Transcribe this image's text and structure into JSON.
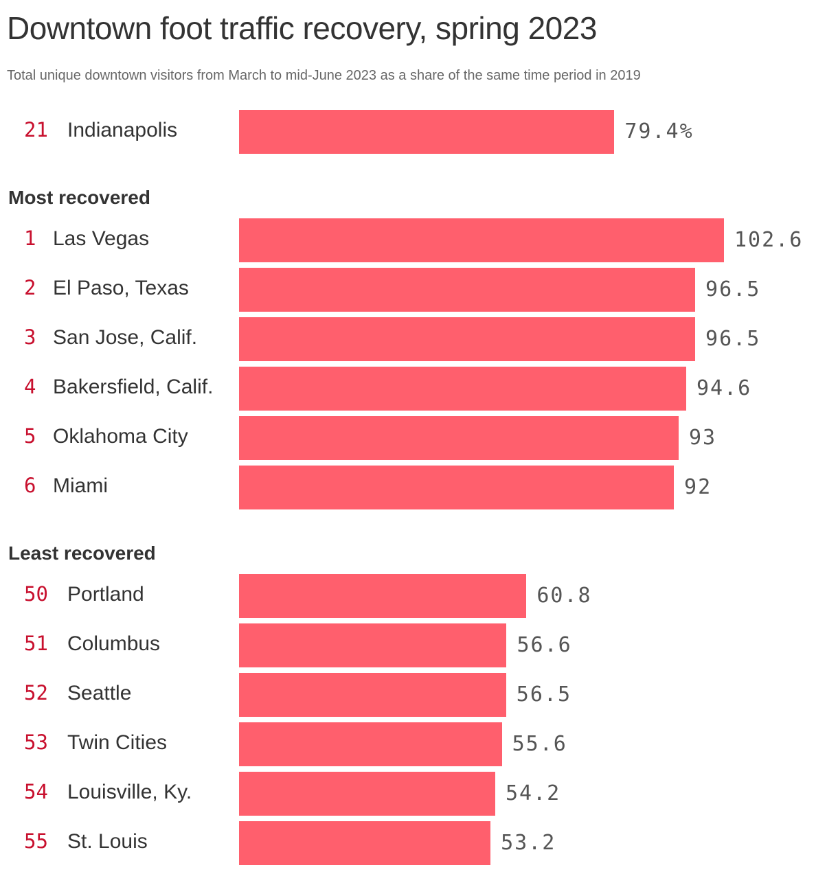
{
  "chart_data": {
    "type": "bar",
    "orientation": "horizontal",
    "title": "Downtown foot traffic recovery, spring 2023",
    "subtitle": "Total unique downtown visitors from March to mid-June 2023 as a share of the same time period in 2019",
    "xlim": [
      0,
      102.6
    ],
    "grid": false,
    "groups": [
      {
        "heading": "",
        "rows": [
          {
            "rank": "21",
            "city": "Indianapolis",
            "value": 79.4,
            "value_label": "79.4%"
          }
        ]
      },
      {
        "heading": "Most recovered",
        "rows": [
          {
            "rank": "1",
            "city": "Las Vegas",
            "value": 102.6,
            "value_label": "102.6"
          },
          {
            "rank": "2",
            "city": "El Paso, Texas",
            "value": 96.5,
            "value_label": "96.5"
          },
          {
            "rank": "3",
            "city": "San Jose, Calif.",
            "value": 96.5,
            "value_label": "96.5"
          },
          {
            "rank": "4",
            "city": "Bakersfield, Calif.",
            "value": 94.6,
            "value_label": "94.6"
          },
          {
            "rank": "5",
            "city": "Oklahoma City",
            "value": 93,
            "value_label": "93"
          },
          {
            "rank": "6",
            "city": "Miami",
            "value": 92,
            "value_label": "92"
          }
        ]
      },
      {
        "heading": "Least recovered",
        "rows": [
          {
            "rank": "50",
            "city": "Portland",
            "value": 60.8,
            "value_label": "60.8"
          },
          {
            "rank": "51",
            "city": "Columbus",
            "value": 56.6,
            "value_label": "56.6"
          },
          {
            "rank": "52",
            "city": "Seattle",
            "value": 56.5,
            "value_label": "56.5"
          },
          {
            "rank": "53",
            "city": "Twin Cities",
            "value": 55.6,
            "value_label": "55.6"
          },
          {
            "rank": "54",
            "city": "Louisville, Ky.",
            "value": 54.2,
            "value_label": "54.2"
          },
          {
            "rank": "55",
            "city": "St. Louis",
            "value": 53.2,
            "value_label": "53.2"
          }
        ]
      }
    ]
  },
  "colors": {
    "bar": "#ff5f6d",
    "rank": "#c8102e",
    "text": "#333333",
    "value": "#555555",
    "subtitle": "#666666"
  }
}
